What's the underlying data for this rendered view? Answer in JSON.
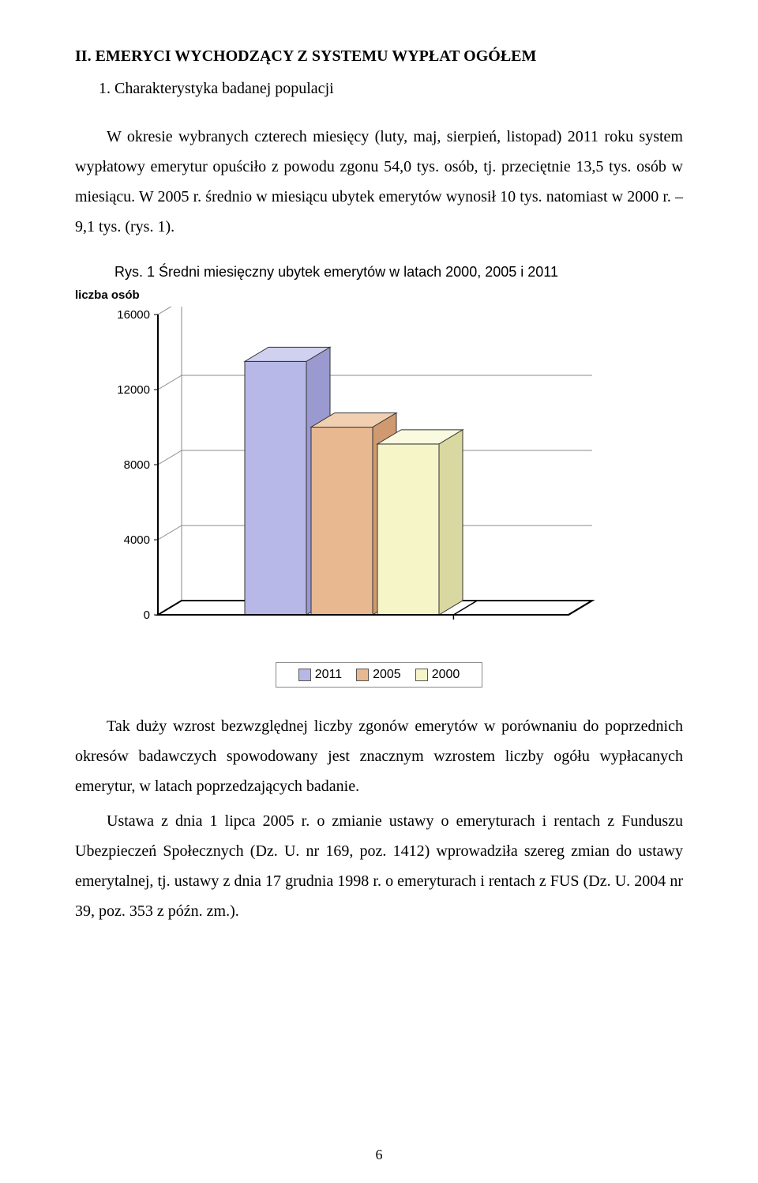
{
  "section_title": "II. EMERYCI WYCHODZĄCY Z SYSTEMU WYPŁAT OGÓŁEM",
  "subsection_title": "1. Charakterystyka badanej populacji",
  "para1": "W okresie wybranych czterech miesięcy (luty, maj, sierpień, listopad) 2011 roku system wypłatowy emerytur opuściło z powodu zgonu 54,0 tys. osób, tj. przeciętnie 13,5 tys. osób w miesiącu. W 2005 r. średnio w miesiącu ubytek emerytów wynosił 10 tys. natomiast w 2000 r. – 9,1 tys. (rys. 1).",
  "chart_title": "Rys. 1   Średni miesięczny ubytek emerytów w latach 2000, 2005 i 2011",
  "axis_label": "liczba osób",
  "chart": {
    "type": "bar-3d",
    "ylim": [
      0,
      16000
    ],
    "ytick_step": 4000,
    "yticks": [
      "16000",
      "12000",
      "8000",
      "4000",
      "0"
    ],
    "series": [
      {
        "label": "2011",
        "value": 13500,
        "front": "#b8b8e8",
        "top": "#d0d0f0",
        "side": "#9a9ad0"
      },
      {
        "label": "2005",
        "value": 10000,
        "front": "#e8b890",
        "top": "#f0d0b0",
        "side": "#d09a70"
      },
      {
        "label": "2000",
        "value": 9100,
        "front": "#f5f5c8",
        "top": "#fafae0",
        "side": "#d8d8a0"
      }
    ],
    "axis_color": "#000000",
    "grid_color": "#888888",
    "background_color": "#ffffff",
    "tick_font_size": 15,
    "tick_font_family": "Arial"
  },
  "legend": {
    "items": [
      {
        "label": "2011",
        "color": "#b8b8e8"
      },
      {
        "label": "2005",
        "color": "#e8b890"
      },
      {
        "label": "2000",
        "color": "#f5f5c8"
      }
    ]
  },
  "para2": "Tak duży wzrost bezwzględnej liczby zgonów emerytów w porównaniu do poprzednich okresów badawczych spowodowany jest znacznym wzrostem liczby ogółu wypłacanych emerytur, w latach poprzedzających badanie.",
  "para3": "Ustawa z dnia 1 lipca 2005 r. o zmianie ustawy o emeryturach i rentach z Funduszu Ubezpieczeń Społecznych (Dz. U. nr 169, poz. 1412) wprowadziła szereg zmian do ustawy emerytalnej, tj. ustawy z dnia 17 grudnia 1998 r. o emeryturach i rentach z FUS (Dz. U. 2004 nr 39, poz. 353 z późn. zm.).",
  "page_number": "6"
}
